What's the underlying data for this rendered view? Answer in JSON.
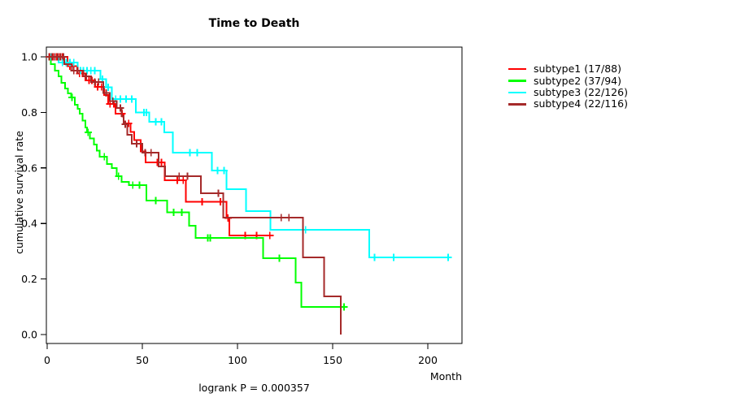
{
  "title": "Time to Death",
  "axes": {
    "ylabel": "cumulative survival rate",
    "xlabel": "Month",
    "xtick_labels": [
      "0",
      "50",
      "100",
      "150",
      "200"
    ],
    "ytick_labels": [
      "0.0",
      "0.2",
      "0.4",
      "0.6",
      "0.8",
      "1.0"
    ]
  },
  "annotation": "logrank P = 0.000357",
  "legend": [
    {
      "label": "subtype1 (17/88)",
      "color": "#ff0000"
    },
    {
      "label": "subtype2 (37/94)",
      "color": "#00ff00"
    },
    {
      "label": "subtype3 (22/126)",
      "color": "#00ffff"
    },
    {
      "label": "subtype4 (22/116)",
      "color": "#a52a2a"
    }
  ],
  "chart_data": {
    "type": "line",
    "variant": "kaplan-meier-step",
    "title": "Time to Death",
    "xlabel": "Month",
    "ylabel": "cumulative survival rate",
    "xlim": [
      0,
      218
    ],
    "ylim": [
      0,
      1
    ],
    "xticks": [
      0,
      50,
      100,
      150,
      200
    ],
    "yticks": [
      0,
      0.2,
      0.4,
      0.6,
      0.8,
      1
    ],
    "grid": false,
    "legend_position": "right-outside",
    "annotation": "logrank P = 0.000357",
    "series": [
      {
        "name": "subtype1 (17/88)",
        "color": "#ff0000",
        "end": 118.5,
        "steps": [
          [
            0,
            1
          ],
          [
            10.7,
            0.967
          ],
          [
            15.8,
            0.94
          ],
          [
            20,
            0.915
          ],
          [
            25.3,
            0.892
          ],
          [
            30,
            0.863
          ],
          [
            32,
            0.83
          ],
          [
            36,
            0.795
          ],
          [
            40.2,
            0.76
          ],
          [
            43.7,
            0.73
          ],
          [
            45.8,
            0.7
          ],
          [
            49.2,
            0.66
          ],
          [
            51.7,
            0.62
          ],
          [
            61.8,
            0.556
          ],
          [
            72.8,
            0.478
          ],
          [
            94.2,
            0.42
          ],
          [
            95.7,
            0.357
          ]
        ],
        "censors": [
          [
            1.5,
            1
          ],
          [
            3,
            1
          ],
          [
            5,
            1
          ],
          [
            6.5,
            1
          ],
          [
            8,
            1
          ],
          [
            12,
            0.967
          ],
          [
            14,
            0.967
          ],
          [
            17,
            0.94
          ],
          [
            18.5,
            0.94
          ],
          [
            22,
            0.915
          ],
          [
            23.5,
            0.915
          ],
          [
            26.5,
            0.892
          ],
          [
            28.5,
            0.892
          ],
          [
            33,
            0.83
          ],
          [
            35,
            0.83
          ],
          [
            39.4,
            0.795
          ],
          [
            42.8,
            0.76
          ],
          [
            57.8,
            0.62
          ],
          [
            60,
            0.62
          ],
          [
            68.4,
            0.556
          ],
          [
            71.5,
            0.556
          ],
          [
            81.4,
            0.478
          ],
          [
            91,
            0.478
          ],
          [
            95,
            0.42
          ],
          [
            104,
            0.357
          ],
          [
            110,
            0.357
          ],
          [
            117,
            0.357
          ]
        ]
      },
      {
        "name": "subtype2 (37/94)",
        "color": "#00ff00",
        "end": 156,
        "steps": [
          [
            0,
            1
          ],
          [
            2,
            0.974
          ],
          [
            4,
            0.95
          ],
          [
            6,
            0.93
          ],
          [
            7.5,
            0.906
          ],
          [
            9.5,
            0.886
          ],
          [
            11,
            0.868
          ],
          [
            12.5,
            0.854
          ],
          [
            14.5,
            0.827
          ],
          [
            16,
            0.813
          ],
          [
            17,
            0.795
          ],
          [
            18.5,
            0.77
          ],
          [
            20,
            0.746
          ],
          [
            21,
            0.728
          ],
          [
            22.5,
            0.706
          ],
          [
            24.5,
            0.684
          ],
          [
            26,
            0.662
          ],
          [
            27.5,
            0.64
          ],
          [
            31.5,
            0.614
          ],
          [
            34,
            0.599
          ],
          [
            36.5,
            0.57
          ],
          [
            39,
            0.55
          ],
          [
            43,
            0.538
          ],
          [
            52.2,
            0.483
          ],
          [
            63,
            0.44
          ],
          [
            74.5,
            0.392
          ],
          [
            78,
            0.348
          ],
          [
            113.5,
            0.275
          ],
          [
            130.6,
            0.187
          ],
          [
            133.6,
            0.099
          ]
        ],
        "censors": [
          [
            13,
            0.854
          ],
          [
            21.5,
            0.728
          ],
          [
            30,
            0.64
          ],
          [
            37.5,
            0.57
          ],
          [
            45,
            0.538
          ],
          [
            48.5,
            0.538
          ],
          [
            57,
            0.483
          ],
          [
            66.4,
            0.44
          ],
          [
            70.7,
            0.44
          ],
          [
            84.4,
            0.348
          ],
          [
            85.7,
            0.348
          ],
          [
            122,
            0.275
          ],
          [
            156,
            0.099
          ]
        ]
      },
      {
        "name": "subtype3 (22/126)",
        "color": "#00ffff",
        "end": 210.7,
        "steps": [
          [
            0,
            1
          ],
          [
            6,
            0.98
          ],
          [
            16,
            0.95
          ],
          [
            28,
            0.92
          ],
          [
            31,
            0.89
          ],
          [
            34,
            0.848
          ],
          [
            46.6,
            0.8
          ],
          [
            53.6,
            0.766
          ],
          [
            61.6,
            0.728
          ],
          [
            66,
            0.655
          ],
          [
            86.5,
            0.59
          ],
          [
            94.2,
            0.523
          ],
          [
            104.5,
            0.444
          ],
          [
            117.3,
            0.377
          ],
          [
            169.2,
            0.278
          ]
        ],
        "censors": [
          [
            2,
            1
          ],
          [
            4,
            1
          ],
          [
            8,
            0.98
          ],
          [
            10,
            0.98
          ],
          [
            12,
            0.98
          ],
          [
            14,
            0.98
          ],
          [
            17.5,
            0.95
          ],
          [
            19,
            0.95
          ],
          [
            21,
            0.95
          ],
          [
            23,
            0.95
          ],
          [
            25,
            0.95
          ],
          [
            29,
            0.92
          ],
          [
            32,
            0.89
          ],
          [
            36,
            0.848
          ],
          [
            38.5,
            0.848
          ],
          [
            41.5,
            0.848
          ],
          [
            44.4,
            0.848
          ],
          [
            50.9,
            0.8
          ],
          [
            52.2,
            0.8
          ],
          [
            57,
            0.766
          ],
          [
            60,
            0.766
          ],
          [
            75,
            0.655
          ],
          [
            78.8,
            0.655
          ],
          [
            89.5,
            0.59
          ],
          [
            93,
            0.59
          ],
          [
            135.8,
            0.377
          ],
          [
            172,
            0.278
          ],
          [
            182,
            0.278
          ],
          [
            210.7,
            0.278
          ]
        ]
      },
      {
        "name": "subtype4 (22/116)",
        "color": "#a52a2a",
        "end": 154.2,
        "steps": [
          [
            0,
            1
          ],
          [
            9,
            0.974
          ],
          [
            13,
            0.95
          ],
          [
            19,
            0.93
          ],
          [
            23,
            0.91
          ],
          [
            29.5,
            0.87
          ],
          [
            33,
            0.84
          ],
          [
            36.5,
            0.816
          ],
          [
            39,
            0.787
          ],
          [
            40.2,
            0.757
          ],
          [
            42,
            0.72
          ],
          [
            44.5,
            0.687
          ],
          [
            50,
            0.655
          ],
          [
            58.6,
            0.605
          ],
          [
            62,
            0.57
          ],
          [
            80.7,
            0.509
          ],
          [
            92.5,
            0.421
          ],
          [
            134.5,
            0.278
          ],
          [
            145.6,
            0.137
          ],
          [
            154.2,
            0
          ]
        ],
        "censors": [
          [
            1,
            1
          ],
          [
            2.5,
            1
          ],
          [
            4,
            1
          ],
          [
            5.5,
            1
          ],
          [
            7,
            1
          ],
          [
            8.5,
            1
          ],
          [
            14,
            0.95
          ],
          [
            16,
            0.95
          ],
          [
            20.5,
            0.93
          ],
          [
            25,
            0.91
          ],
          [
            27,
            0.91
          ],
          [
            31,
            0.87
          ],
          [
            34.5,
            0.84
          ],
          [
            38.5,
            0.816
          ],
          [
            41,
            0.757
          ],
          [
            47,
            0.687
          ],
          [
            51.5,
            0.655
          ],
          [
            54.6,
            0.655
          ],
          [
            69.3,
            0.57
          ],
          [
            73.7,
            0.57
          ],
          [
            90,
            0.509
          ],
          [
            123,
            0.421
          ],
          [
            127,
            0.421
          ]
        ]
      }
    ]
  }
}
